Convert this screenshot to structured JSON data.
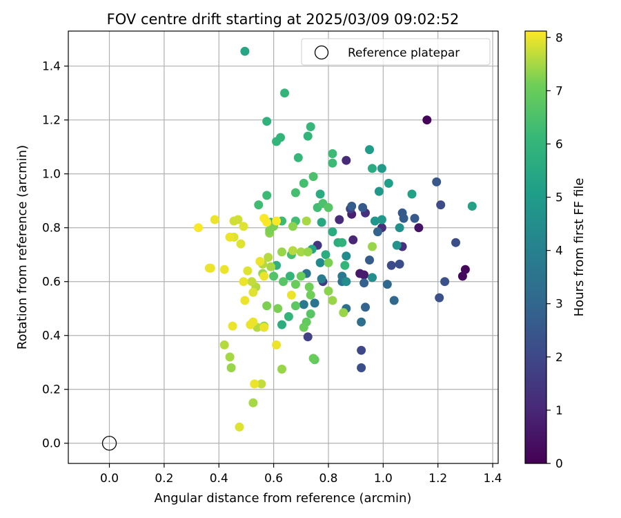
{
  "chart_data": {
    "type": "scatter",
    "title": "FOV centre drift starting at 2025/03/09 09:02:52",
    "xlabel": "Angular distance from reference (arcmin)",
    "ylabel": "Rotation from reference (arcmin)",
    "xlim": [
      -0.15,
      1.42
    ],
    "ylim": [
      -0.075,
      1.53
    ],
    "xticks": [
      0.0,
      0.2,
      0.4,
      0.6,
      0.8,
      1.0,
      1.2,
      1.4
    ],
    "xtick_labels": [
      "0.0",
      "0.2",
      "0.4",
      "0.6",
      "0.8",
      "1.0",
      "1.2",
      "1.4"
    ],
    "yticks": [
      0.0,
      0.2,
      0.4,
      0.6,
      0.8,
      1.0,
      1.2,
      1.4
    ],
    "ytick_labels": [
      "0.0",
      "0.2",
      "0.4",
      "0.6",
      "0.8",
      "1.0",
      "1.2",
      "1.4"
    ],
    "grid": true,
    "legend": {
      "location": "top-right",
      "entries": [
        "Reference platepar"
      ]
    },
    "reference_point": {
      "x": 0.0,
      "y": 0.0,
      "label": "Reference platepar"
    },
    "colorbar": {
      "label": "Hours from first FF file",
      "colormap": "viridis",
      "range": [
        0,
        8.12
      ],
      "ticks": [
        0,
        1,
        2,
        3,
        4,
        5,
        6,
        7,
        8
      ],
      "tick_labels": [
        "0",
        "1",
        "2",
        "3",
        "4",
        "5",
        "6",
        "7",
        "8"
      ]
    },
    "series": [
      {
        "points": [
          [
            1.16,
            1.2,
            0.1
          ],
          [
            1.29,
            0.62,
            0.2
          ],
          [
            1.3,
            0.645,
            0.2
          ],
          [
            1.13,
            0.8,
            0.5
          ],
          [
            0.915,
            0.63,
            0.6
          ],
          [
            0.93,
            0.625,
            0.7
          ],
          [
            0.885,
            0.85,
            0.8
          ],
          [
            0.89,
            0.755,
            1.0
          ],
          [
            0.865,
            1.05,
            1.1
          ],
          [
            0.84,
            0.83,
            1.1
          ],
          [
            0.935,
            0.855,
            1.3
          ],
          [
            0.995,
            0.8,
            1.2
          ],
          [
            1.07,
            0.73,
            1.3
          ],
          [
            0.76,
            0.735,
            1.4
          ],
          [
            0.78,
            0.6,
            1.6
          ],
          [
            0.88,
            0.87,
            1.7
          ],
          [
            0.725,
            0.395,
            1.8
          ],
          [
            0.92,
            0.345,
            2.0
          ],
          [
            0.92,
            0.28,
            2.2
          ],
          [
            1.03,
            0.66,
            2.1
          ],
          [
            1.06,
            0.665,
            2.2
          ],
          [
            1.21,
            0.885,
            2.1
          ],
          [
            1.265,
            0.745,
            2.2
          ],
          [
            1.225,
            0.6,
            2.3
          ],
          [
            1.205,
            0.54,
            2.3
          ],
          [
            1.195,
            0.97,
            2.5
          ],
          [
            1.115,
            0.835,
            2.6
          ],
          [
            1.075,
            0.835,
            2.7
          ],
          [
            1.07,
            0.855,
            2.6
          ],
          [
            0.885,
            0.88,
            2.7
          ],
          [
            0.925,
            0.875,
            2.6
          ],
          [
            0.93,
            0.595,
            2.8
          ],
          [
            0.935,
            0.505,
            2.9
          ],
          [
            0.95,
            0.68,
            2.7
          ],
          [
            0.98,
            0.785,
            2.9
          ],
          [
            1.015,
            0.59,
            3.1
          ],
          [
            1.04,
            0.53,
            3.1
          ],
          [
            0.92,
            0.45,
            3.3
          ],
          [
            0.865,
            0.5,
            3.3
          ],
          [
            0.85,
            0.6,
            3.4
          ],
          [
            0.72,
            0.63,
            3.5
          ],
          [
            0.71,
            0.515,
            3.7
          ],
          [
            0.75,
            0.52,
            3.6
          ],
          [
            0.85,
            0.62,
            3.7
          ],
          [
            0.775,
            0.61,
            3.8
          ],
          [
            0.77,
            0.67,
            4.3
          ],
          [
            0.865,
            0.695,
            4.4
          ],
          [
            0.865,
            0.6,
            4.5
          ],
          [
            0.96,
            0.615,
            4.5
          ],
          [
            1.06,
            0.8,
            4.6
          ],
          [
            1.05,
            0.735,
            4.7
          ],
          [
            0.97,
            0.825,
            4.8
          ],
          [
            0.995,
            0.83,
            4.9
          ],
          [
            0.985,
            0.935,
            4.9
          ],
          [
            0.995,
            1.02,
            5.0
          ],
          [
            1.02,
            0.965,
            5.1
          ],
          [
            0.95,
            1.09,
            5.0
          ],
          [
            1.105,
            0.925,
            5.2
          ],
          [
            1.325,
            0.88,
            5.2
          ],
          [
            0.74,
            0.72,
            5.4
          ],
          [
            0.775,
            0.82,
            5.5
          ],
          [
            0.77,
            0.925,
            5.6
          ],
          [
            0.96,
            1.02,
            5.6
          ],
          [
            0.815,
            0.785,
            5.6
          ],
          [
            0.79,
            0.7,
            5.7
          ],
          [
            0.835,
            0.745,
            5.7
          ],
          [
            0.85,
            0.745,
            5.9
          ],
          [
            0.61,
            0.66,
            5.8
          ],
          [
            0.63,
            0.44,
            5.7
          ],
          [
            0.66,
            0.62,
            6.0
          ],
          [
            0.655,
            0.47,
            6.0
          ],
          [
            0.86,
            0.66,
            6.0
          ],
          [
            0.735,
            1.175,
            6.1
          ],
          [
            0.725,
            1.14,
            6.0
          ],
          [
            0.64,
            1.3,
            6.0
          ],
          [
            0.495,
            1.455,
            5.4
          ],
          [
            0.575,
            1.195,
            5.9
          ],
          [
            0.625,
            1.135,
            6.0
          ],
          [
            0.61,
            1.12,
            6.0
          ],
          [
            0.69,
            1.06,
            6.1
          ],
          [
            0.815,
            1.075,
            6.2
          ],
          [
            0.815,
            1.04,
            6.2
          ],
          [
            0.76,
            0.875,
            6.3
          ],
          [
            0.575,
            0.92,
            6.2
          ],
          [
            0.545,
            0.885,
            6.3
          ],
          [
            0.59,
            0.82,
            6.0
          ],
          [
            0.63,
            0.825,
            6.2
          ],
          [
            0.68,
            0.825,
            6.3
          ],
          [
            0.68,
            0.93,
            6.4
          ],
          [
            0.71,
            0.965,
            6.4
          ],
          [
            0.745,
            0.99,
            6.5
          ],
          [
            0.78,
            0.89,
            6.5
          ],
          [
            0.8,
            0.875,
            6.7
          ],
          [
            0.665,
            0.7,
            6.4
          ],
          [
            0.6,
            0.62,
            6.6
          ],
          [
            0.635,
            0.6,
            6.7
          ],
          [
            0.68,
            0.51,
            6.8
          ],
          [
            0.735,
            0.48,
            6.7
          ],
          [
            0.72,
            0.45,
            6.9
          ],
          [
            0.71,
            0.43,
            7.0
          ],
          [
            0.68,
            0.59,
            7.0
          ],
          [
            0.75,
            0.31,
            6.8
          ],
          [
            0.745,
            0.315,
            7.0
          ],
          [
            0.7,
            0.62,
            7.0
          ],
          [
            0.73,
            0.58,
            7.1
          ],
          [
            0.735,
            0.55,
            7.1
          ],
          [
            0.8,
            0.67,
            7.2
          ],
          [
            0.8,
            0.565,
            7.3
          ],
          [
            0.815,
            0.53,
            7.4
          ],
          [
            0.855,
            0.485,
            7.4
          ],
          [
            0.96,
            0.73,
            7.4
          ],
          [
            0.575,
            0.51,
            7.2
          ],
          [
            0.565,
            0.435,
            7.3
          ],
          [
            0.615,
            0.5,
            7.2
          ],
          [
            0.63,
            0.275,
            7.4
          ],
          [
            0.56,
            0.63,
            7.4
          ],
          [
            0.585,
            0.78,
            7.3
          ],
          [
            0.585,
            0.79,
            7.2
          ],
          [
            0.6,
            0.805,
            7.2
          ],
          [
            0.63,
            0.71,
            7.4
          ],
          [
            0.67,
            0.715,
            7.6
          ],
          [
            0.7,
            0.71,
            7.5
          ],
          [
            0.725,
            0.71,
            7.4
          ],
          [
            0.72,
            0.825,
            7.5
          ],
          [
            0.67,
            0.805,
            7.3
          ],
          [
            0.58,
            0.69,
            7.6
          ],
          [
            0.59,
            0.655,
            7.5
          ],
          [
            0.56,
            0.665,
            7.6
          ],
          [
            0.535,
            0.58,
            7.6
          ],
          [
            0.52,
            0.6,
            7.7
          ],
          [
            0.54,
            0.43,
            7.6
          ],
          [
            0.555,
            0.22,
            7.7
          ],
          [
            0.525,
            0.15,
            7.5
          ],
          [
            0.44,
            0.32,
            7.5
          ],
          [
            0.445,
            0.28,
            7.4
          ],
          [
            0.42,
            0.365,
            7.6
          ],
          [
            0.47,
            0.83,
            7.8
          ],
          [
            0.455,
            0.825,
            7.8
          ],
          [
            0.49,
            0.805,
            7.9
          ],
          [
            0.48,
            0.74,
            7.9
          ],
          [
            0.455,
            0.765,
            7.9
          ],
          [
            0.44,
            0.765,
            8.0
          ],
          [
            0.42,
            0.645,
            8.0
          ],
          [
            0.385,
            0.83,
            8.0
          ],
          [
            0.37,
            0.65,
            8.0
          ],
          [
            0.325,
            0.8,
            8.1
          ],
          [
            0.365,
            0.65,
            8.0
          ],
          [
            0.49,
            0.6,
            8.0
          ],
          [
            0.505,
            0.64,
            7.9
          ],
          [
            0.495,
            0.53,
            8.0
          ],
          [
            0.525,
            0.56,
            7.9
          ],
          [
            0.55,
            0.675,
            8.0
          ],
          [
            0.565,
            0.62,
            8.0
          ],
          [
            0.515,
            0.44,
            8.0
          ],
          [
            0.525,
            0.45,
            8.0
          ],
          [
            0.45,
            0.435,
            8.0
          ],
          [
            0.565,
            0.43,
            8.0
          ],
          [
            0.53,
            0.22,
            8.0
          ],
          [
            0.475,
            0.06,
            7.9
          ],
          [
            0.61,
            0.365,
            8.0
          ],
          [
            0.665,
            0.55,
            8.0
          ],
          [
            0.565,
            0.835,
            8.1
          ],
          [
            0.575,
            0.82,
            8.1
          ],
          [
            0.61,
            0.825,
            8.1
          ]
        ]
      }
    ]
  }
}
